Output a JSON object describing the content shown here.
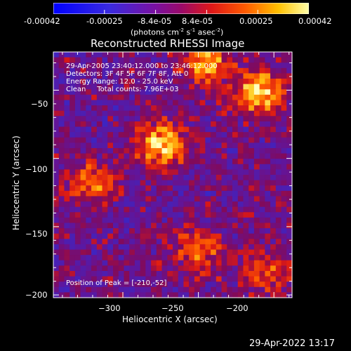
{
  "colorbar": {
    "min": -0.00042,
    "max": 0.00042,
    "tick_labels": [
      "-0.00042",
      "-0.00025",
      "-8.4e-05",
      "8.4e-05",
      "0.00025",
      "0.00042"
    ],
    "unit_label": "(photons cm",
    "unit_sup1": "-2",
    "unit_mid": " s",
    "unit_sup2": "-1",
    "unit_end": " asec",
    "unit_sup3": "-2",
    "unit_close": ")"
  },
  "chart_data": {
    "type": "heatmap",
    "title": "Reconstructed RHESSI Image",
    "xlabel": "Heliocentric X (arcsec)",
    "ylabel": "Heliocentric Y (arcsec)",
    "xlim": [
      -346,
      -188
    ],
    "ylim": [
      -202,
      -22
    ],
    "x_ticks": [
      -300,
      -250,
      -200
    ],
    "x_tick_labels": [
      "−300",
      "−250",
      "−200"
    ],
    "y_ticks": [
      -50,
      -100,
      -150,
      -200
    ],
    "y_tick_labels": [
      "−50",
      "−100",
      "−150",
      "−200"
    ],
    "colormap": "blue-purple-red-yellow-white",
    "grid": false,
    "peak": {
      "x": -210,
      "y": -52
    },
    "bright_regions": [
      {
        "x": -274,
        "y": -90,
        "intensity": 0.00042
      },
      {
        "x": -210,
        "y": -52,
        "intensity": 0.00042
      },
      {
        "x": -246,
        "y": -30,
        "intensity": 0.00035
      },
      {
        "x": -320,
        "y": -118,
        "intensity": 0.0003
      },
      {
        "x": -250,
        "y": -168,
        "intensity": 0.00028
      },
      {
        "x": -205,
        "y": -182,
        "intensity": 0.00022
      }
    ],
    "annotations": [
      "29-Apr-2005 23:40:12.000 to 23:46:12.000",
      "Detectors: 3F 4F 5F 6F 7F 8F, Att 0",
      "Energy Range: 12.0 - 25.0 keV",
      "Clean     Total counts: 7.96E+03"
    ],
    "peak_text": "Position of Peak = [-210,-52]"
  },
  "timestamp": "29-Apr-2022 13:17"
}
